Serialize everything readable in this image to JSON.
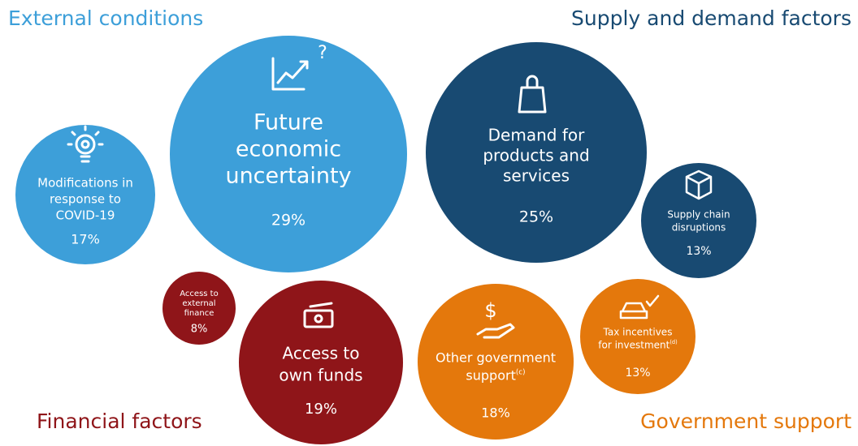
{
  "groups": [
    {
      "title": "External conditions",
      "color": "#3d9fd9",
      "bubbles": [
        {
          "lines": [
            "Future",
            "economic",
            "uncertainty"
          ],
          "value": "29%"
        },
        {
          "lines": [
            "Modifications in",
            "response to",
            "COVID-19"
          ],
          "value": "17%"
        }
      ]
    },
    {
      "title": "Supply and demand factors",
      "color": "#184a72",
      "bubbles": [
        {
          "lines": [
            "Demand for",
            "products and",
            "services"
          ],
          "value": "25%"
        },
        {
          "lines": [
            "Supply chain",
            "disruptions"
          ],
          "value": "13%"
        }
      ]
    },
    {
      "title": "Financial factors",
      "color": "#8f1519",
      "bubbles": [
        {
          "lines": [
            "Access to",
            "external",
            "finance"
          ],
          "value": "8%"
        },
        {
          "lines": [
            "Access to",
            "own funds"
          ],
          "value": "19%"
        }
      ]
    },
    {
      "title": "Government support",
      "color": "#e4780c",
      "bubbles": [
        {
          "lines": [
            "Other government",
            "support"
          ],
          "note": "(c)",
          "value": "18%"
        },
        {
          "lines": [
            "Tax incentives",
            "for investment"
          ],
          "note": "(d)",
          "value": "13%"
        }
      ]
    }
  ]
}
